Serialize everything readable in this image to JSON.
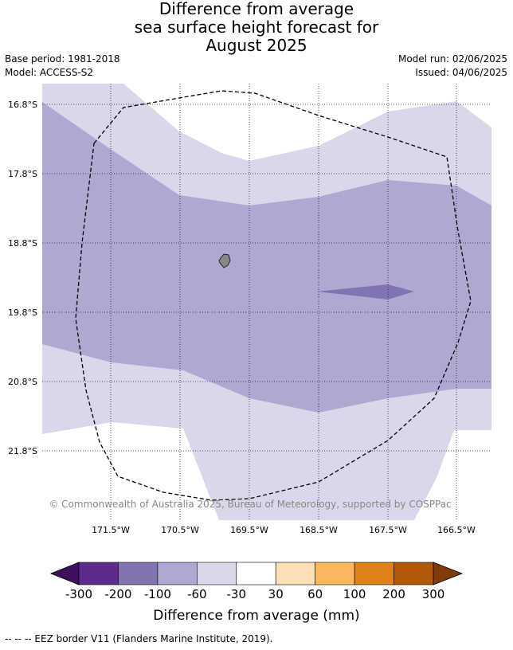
{
  "title": {
    "line1": "Difference from average",
    "line2": "sea surface height forecast for",
    "line3": "August 2025"
  },
  "meta": {
    "base_period": "Base period: 1981-2018",
    "model": "Model: ACCESS-S2",
    "model_run": "Model run: 02/06/2025",
    "issued": "Issued: 04/06/2025"
  },
  "map": {
    "lat_labels": [
      "16.8°S",
      "17.8°S",
      "18.8°S",
      "19.8°S",
      "20.8°S",
      "21.8°S"
    ],
    "lon_labels": [
      "171.5°W",
      "170.5°W",
      "169.5°W",
      "168.5°W",
      "167.5°W",
      "166.5°W"
    ],
    "watermark": "© Commonwealth of Australia 2025, Bureau of Meteorology, supported by COSPPac"
  },
  "legend": {
    "ticks": [
      "-300",
      "-200",
      "-100",
      "-60",
      "-30",
      "30",
      "60",
      "100",
      "200",
      "300"
    ],
    "label": "Difference from average (mm)",
    "colors": [
      "#3d0f5c",
      "#5e2a8c",
      "#8373b0",
      "#b0a8d2",
      "#d8d8ea",
      "#ffffff",
      "#fee0b6",
      "#fbb65e",
      "#e0821a",
      "#b35806",
      "#7f3b08"
    ]
  },
  "footer": "--  --  -- EEZ border V11 (Flanders Marine Institute, 2019)."
}
